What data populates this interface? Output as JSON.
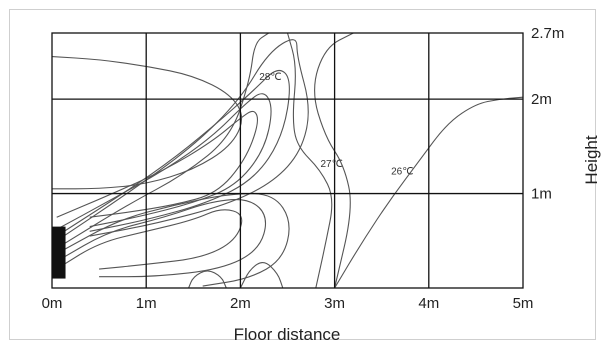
{
  "chart_data": {
    "type": "contour",
    "xlabel": "Floor distance",
    "ylabel": "Height",
    "x_ticks": [
      "0m",
      "1m",
      "2m",
      "3m",
      "4m",
      "5m"
    ],
    "y_ticks": [
      "1m",
      "2m",
      "2.7m"
    ],
    "xlim": [
      0,
      5
    ],
    "ylim": [
      0,
      2.7
    ],
    "grid": true,
    "source": {
      "x_range": [
        0,
        0.08
      ],
      "y_range": [
        0.1,
        0.65
      ]
    },
    "isotherm_labels": [
      {
        "text": "28℃",
        "x": 2.2,
        "y": 2.2
      },
      {
        "text": "27℃",
        "x": 2.85,
        "y": 1.28
      },
      {
        "text": "26℃",
        "x": 3.6,
        "y": 1.2
      }
    ],
    "contours": [
      {
        "points": [
          [
            0,
            2.45
          ],
          [
            0.5,
            2.42
          ],
          [
            1.0,
            2.35
          ],
          [
            1.5,
            2.25
          ],
          [
            1.9,
            2.05
          ],
          [
            2.05,
            1.8
          ],
          [
            1.9,
            1.5
          ],
          [
            1.5,
            1.25
          ],
          [
            1.0,
            1.1
          ],
          [
            0.5,
            1.05
          ],
          [
            0,
            1.05
          ]
        ]
      },
      {
        "points": [
          [
            0.05,
            0.75
          ],
          [
            0.6,
            0.98
          ],
          [
            1.2,
            1.25
          ],
          [
            1.7,
            1.55
          ],
          [
            2.0,
            1.8
          ],
          [
            2.15,
            1.9
          ],
          [
            2.2,
            1.75
          ],
          [
            2.05,
            1.35
          ],
          [
            1.75,
            1.0
          ],
          [
            1.3,
            0.88
          ],
          [
            0.8,
            0.8
          ],
          [
            0.4,
            0.75
          ]
        ]
      },
      {
        "points": [
          [
            0.05,
            0.62
          ],
          [
            0.6,
            0.92
          ],
          [
            1.2,
            1.25
          ],
          [
            1.7,
            1.6
          ],
          [
            2.05,
            1.95
          ],
          [
            2.25,
            2.1
          ],
          [
            2.35,
            1.9
          ],
          [
            2.25,
            1.45
          ],
          [
            1.95,
            1.08
          ],
          [
            1.5,
            0.9
          ],
          [
            0.9,
            0.75
          ],
          [
            0.4,
            0.65
          ]
        ]
      },
      {
        "points": [
          [
            0.05,
            0.55
          ],
          [
            0.6,
            0.9
          ],
          [
            1.2,
            1.3
          ],
          [
            1.7,
            1.7
          ],
          [
            2.15,
            2.1
          ],
          [
            2.4,
            2.35
          ],
          [
            2.55,
            2.2
          ],
          [
            2.45,
            1.6
          ],
          [
            2.15,
            1.15
          ],
          [
            1.65,
            0.9
          ],
          [
            1.0,
            0.72
          ],
          [
            0.4,
            0.6
          ]
        ]
      },
      {
        "points": [
          [
            0.05,
            0.5
          ],
          [
            0.8,
            1.0
          ],
          [
            1.5,
            1.5
          ],
          [
            2.0,
            2.0
          ],
          [
            2.3,
            2.5
          ],
          [
            2.6,
            2.68
          ],
          [
            2.6,
            2.45
          ],
          [
            2.75,
            1.9
          ],
          [
            2.65,
            1.45
          ],
          [
            2.35,
            1.12
          ],
          [
            1.85,
            0.88
          ],
          [
            1.1,
            0.68
          ],
          [
            0.4,
            0.55
          ]
        ]
      },
      {
        "points": [
          [
            0.05,
            0.42
          ],
          [
            0.8,
            0.88
          ],
          [
            1.4,
            1.2
          ],
          [
            1.9,
            1.6
          ],
          [
            2.1,
            2.2
          ],
          [
            2.15,
            2.6
          ],
          [
            2.3,
            2.7
          ]
        ]
      },
      {
        "points": [
          [
            2.5,
            2.7
          ],
          [
            2.6,
            2.35
          ],
          [
            2.55,
            1.8
          ],
          [
            2.6,
            1.5
          ],
          [
            2.85,
            1.25
          ],
          [
            3.0,
            0.95
          ],
          [
            2.9,
            0.45
          ],
          [
            2.8,
            0
          ]
        ]
      },
      {
        "points": [
          [
            3.2,
            2.7
          ],
          [
            2.9,
            2.55
          ],
          [
            2.75,
            2.1
          ],
          [
            2.9,
            1.6
          ],
          [
            3.1,
            1.3
          ],
          [
            3.2,
            0.85
          ],
          [
            3.0,
            0
          ]
        ]
      },
      {
        "points": [
          [
            3.0,
            0
          ],
          [
            3.3,
            0.5
          ],
          [
            3.6,
            0.95
          ],
          [
            3.9,
            1.35
          ],
          [
            4.2,
            1.75
          ],
          [
            4.5,
            1.95
          ],
          [
            4.75,
            2.0
          ],
          [
            5.0,
            2.02
          ]
        ]
      },
      {
        "points": [
          [
            0.08,
            0.22
          ],
          [
            0.5,
            0.48
          ],
          [
            1.0,
            0.6
          ],
          [
            1.5,
            0.72
          ],
          [
            1.8,
            0.85
          ],
          [
            2.05,
            0.78
          ],
          [
            1.95,
            0.5
          ],
          [
            1.6,
            0.32
          ],
          [
            1.0,
            0.25
          ],
          [
            0.5,
            0.2
          ]
        ]
      },
      {
        "points": [
          [
            0.08,
            0.3
          ],
          [
            0.6,
            0.6
          ],
          [
            1.2,
            0.75
          ],
          [
            1.7,
            0.92
          ],
          [
            2.1,
            0.95
          ],
          [
            2.3,
            0.75
          ],
          [
            2.2,
            0.4
          ],
          [
            1.8,
            0.2
          ],
          [
            1.1,
            0.12
          ],
          [
            0.5,
            0.12
          ]
        ]
      },
      {
        "points": [
          [
            0.08,
            0.38
          ],
          [
            0.7,
            0.72
          ],
          [
            1.3,
            0.88
          ],
          [
            1.9,
            1.0
          ],
          [
            2.35,
            1.0
          ],
          [
            2.55,
            0.7
          ],
          [
            2.45,
            0.3
          ],
          [
            2.1,
            0.1
          ],
          [
            1.6,
            0.02
          ]
        ]
      },
      {
        "points": [
          [
            1.45,
            0
          ],
          [
            1.5,
            0.12
          ],
          [
            1.65,
            0.2
          ],
          [
            1.8,
            0.12
          ],
          [
            1.85,
            0
          ]
        ]
      },
      {
        "points": [
          [
            2.0,
            0
          ],
          [
            2.1,
            0.2
          ],
          [
            2.25,
            0.3
          ],
          [
            2.4,
            0.15
          ],
          [
            2.45,
            0
          ]
        ]
      }
    ]
  }
}
